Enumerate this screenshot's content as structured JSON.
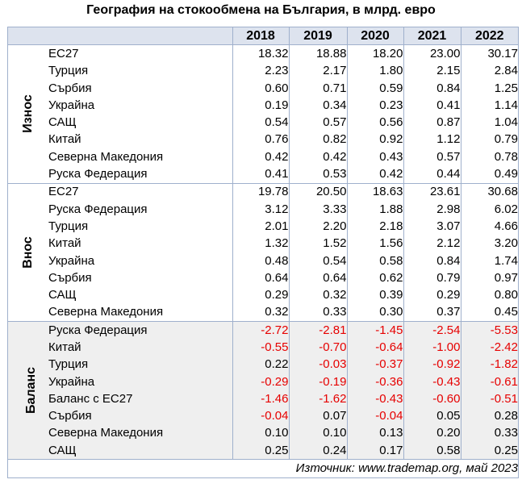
{
  "title": "География на стокообмена на България, в млрд. евро",
  "years": [
    "2018",
    "2019",
    "2020",
    "2021",
    "2022"
  ],
  "groups": [
    {
      "label": "Износ",
      "rows": [
        {
          "country": "ЕС27",
          "values": [
            "18.32",
            "18.88",
            "18.20",
            "23.00",
            "30.17"
          ]
        },
        {
          "country": "Турция",
          "values": [
            "2.23",
            "2.17",
            "1.80",
            "2.15",
            "2.84"
          ]
        },
        {
          "country": "Сърбия",
          "values": [
            "0.60",
            "0.71",
            "0.59",
            "0.84",
            "1.25"
          ]
        },
        {
          "country": "Украйна",
          "values": [
            "0.19",
            "0.34",
            "0.23",
            "0.41",
            "1.14"
          ]
        },
        {
          "country": "САЩ",
          "values": [
            "0.54",
            "0.57",
            "0.56",
            "0.87",
            "1.04"
          ]
        },
        {
          "country": "Китай",
          "values": [
            "0.76",
            "0.82",
            "0.92",
            "1.12",
            "0.79"
          ]
        },
        {
          "country": "Северна Македония",
          "values": [
            "0.42",
            "0.42",
            "0.43",
            "0.57",
            "0.78"
          ]
        },
        {
          "country": "Руска Федерация",
          "values": [
            "0.41",
            "0.53",
            "0.42",
            "0.44",
            "0.49"
          ]
        }
      ]
    },
    {
      "label": "Внос",
      "rows": [
        {
          "country": "ЕС27",
          "values": [
            "19.78",
            "20.50",
            "18.63",
            "23.61",
            "30.68"
          ]
        },
        {
          "country": "Руска Федерация",
          "values": [
            "3.12",
            "3.33",
            "1.88",
            "2.98",
            "6.02"
          ]
        },
        {
          "country": "Турция",
          "values": [
            "2.01",
            "2.20",
            "2.18",
            "3.07",
            "4.66"
          ]
        },
        {
          "country": "Китай",
          "values": [
            "1.32",
            "1.52",
            "1.56",
            "2.12",
            "3.20"
          ]
        },
        {
          "country": "Украйна",
          "values": [
            "0.48",
            "0.54",
            "0.58",
            "0.84",
            "1.74"
          ]
        },
        {
          "country": "Сърбия",
          "values": [
            "0.64",
            "0.64",
            "0.62",
            "0.79",
            "0.97"
          ]
        },
        {
          "country": "САЩ",
          "values": [
            "0.29",
            "0.32",
            "0.39",
            "0.29",
            "0.80"
          ]
        },
        {
          "country": "Северна Македония",
          "values": [
            "0.32",
            "0.33",
            "0.30",
            "0.37",
            "0.45"
          ]
        }
      ]
    },
    {
      "label": "Баланс",
      "rows": [
        {
          "country": "Руска Федерация",
          "values": [
            "-2.72",
            "-2.81",
            "-1.45",
            "-2.54",
            "-5.53"
          ]
        },
        {
          "country": "Китай",
          "values": [
            "-0.55",
            "-0.70",
            "-0.64",
            "-1.00",
            "-2.42"
          ]
        },
        {
          "country": "Турция",
          "values": [
            "0.22",
            "-0.03",
            "-0.37",
            "-0.92",
            "-1.82"
          ]
        },
        {
          "country": "Украйна",
          "values": [
            "-0.29",
            "-0.19",
            "-0.36",
            "-0.43",
            "-0.61"
          ]
        },
        {
          "country": "Баланс с ЕС27",
          "values": [
            "-1.46",
            "-1.62",
            "-0.43",
            "-0.60",
            "-0.51"
          ]
        },
        {
          "country": "Сърбия",
          "values": [
            "-0.04",
            "0.07",
            "-0.04",
            "0.05",
            "0.28"
          ]
        },
        {
          "country": "Северна Македония",
          "values": [
            "0.10",
            "0.10",
            "0.13",
            "0.20",
            "0.33"
          ]
        },
        {
          "country": "САЩ",
          "values": [
            "0.25",
            "0.24",
            "0.17",
            "0.58",
            "0.25"
          ]
        }
      ]
    }
  ],
  "source": "Източник: www.trademap.org, май 2023",
  "colors": {
    "negative": "#e60000",
    "header_bg": "#dde3ee",
    "balance_bg": "#efefef",
    "border": "#9fb0cc"
  }
}
